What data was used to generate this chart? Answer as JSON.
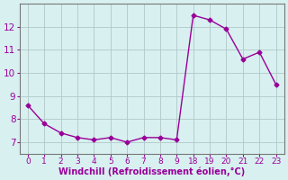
{
  "x_indices": [
    0,
    1,
    2,
    3,
    4,
    5,
    6,
    7,
    8,
    9,
    10,
    11,
    12,
    13,
    14,
    15
  ],
  "x_labels": [
    "0",
    "1",
    "2",
    "3",
    "4",
    "5",
    "6",
    "7",
    "8",
    "9",
    "18",
    "19",
    "20",
    "21",
    "22",
    "23"
  ],
  "y_values": [
    8.6,
    7.8,
    7.4,
    7.2,
    7.1,
    7.2,
    7.0,
    7.2,
    7.2,
    7.1,
    12.5,
    12.3,
    11.9,
    10.6,
    10.9,
    9.5
  ],
  "line_color": "#990099",
  "marker": "D",
  "marker_size": 2.5,
  "line_width": 1.0,
  "xlabel": "Windchill (Refroidissement éolien,°C)",
  "xlabel_fontsize": 7.0,
  "ylim": [
    6.5,
    13.0
  ],
  "xlim": [
    -0.5,
    15.5
  ],
  "yticks": [
    7,
    8,
    9,
    10,
    11,
    12
  ],
  "grid_color": "#b0c8c8",
  "bg_color": "#d8f0f0",
  "tick_label_color": "#990099",
  "axis_color": "#777777",
  "tick_fontsize": 6.5,
  "ytick_fontsize": 7.5
}
